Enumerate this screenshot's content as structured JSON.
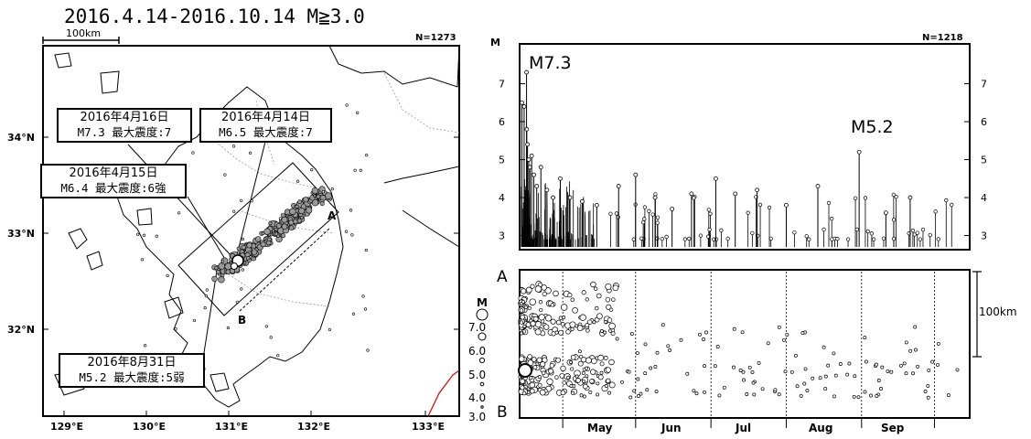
{
  "map": {
    "title": "2016.4.14-2016.10.14 M≧3.0",
    "count": "N=1273",
    "scalebar": "100km",
    "lat_labels": [
      "34°N",
      "33°N",
      "32°N"
    ],
    "lon_labels": [
      "129°E",
      "130°E",
      "131°E",
      "132°E",
      "133°E"
    ],
    "section_end_a": "A",
    "section_end_b": "B",
    "callouts": [
      {
        "date": "2016年4月16日",
        "detail": "M7.3 最大震度:7"
      },
      {
        "date": "2016年4月14日",
        "detail": "M6.5 最大震度:7"
      },
      {
        "date": "2016年4月15日",
        "detail": "M6.4 最大震度:6強"
      },
      {
        "date": "2016年8月31日",
        "detail": "M5.2 最大震度:5弱"
      }
    ],
    "magnitude_legend": {
      "title": "M",
      "values": [
        "7.0",
        "6.0",
        "5.0",
        "4.0",
        "3.0"
      ]
    },
    "colors": {
      "coast": "#000000",
      "prefecture": "#999999",
      "trench": "#e00000",
      "quake_fill": "#9a9a9a"
    }
  },
  "mt_chart": {
    "count": "N=1218",
    "y_axis_title": "M",
    "y_ticks": [
      "3",
      "4",
      "5",
      "6",
      "7"
    ],
    "annotations": [
      "M7.3",
      "M5.2"
    ]
  },
  "space_time": {
    "end_top": "A",
    "end_bottom": "B",
    "distance_scale": "100km",
    "months": [
      "May",
      "Jun",
      "Jul",
      "Aug",
      "Sep"
    ]
  },
  "chart_data": [
    {
      "type": "scatter",
      "title": "",
      "xlabel": "",
      "ylabel": "M",
      "ylim": [
        2.7,
        8.0
      ],
      "x_unit": "days since 2016-04-14",
      "xlim": [
        0,
        183
      ],
      "points": [
        {
          "x": 0.2,
          "y": 6.5
        },
        {
          "x": 1.1,
          "y": 6.4
        },
        {
          "x": 2.1,
          "y": 7.3
        },
        {
          "x": 2.2,
          "y": 5.8
        },
        {
          "x": 2.5,
          "y": 5.4
        },
        {
          "x": 3.0,
          "y": 5.0
        },
        {
          "x": 3.5,
          "y": 4.8
        },
        {
          "x": 4.2,
          "y": 5.1
        },
        {
          "x": 5.1,
          "y": 4.6
        },
        {
          "x": 6.3,
          "y": 4.3
        },
        {
          "x": 8.0,
          "y": 4.8
        },
        {
          "x": 10.5,
          "y": 4.2
        },
        {
          "x": 13.0,
          "y": 4.0
        },
        {
          "x": 16.0,
          "y": 4.5
        },
        {
          "x": 20.0,
          "y": 4.0
        },
        {
          "x": 25.0,
          "y": 3.9
        },
        {
          "x": 31.0,
          "y": 3.8
        },
        {
          "x": 40.0,
          "y": 4.3
        },
        {
          "x": 47.0,
          "y": 4.6
        },
        {
          "x": 55.0,
          "y": 4.0
        },
        {
          "x": 62.0,
          "y": 3.7
        },
        {
          "x": 70.0,
          "y": 4.1
        },
        {
          "x": 80.0,
          "y": 4.5
        },
        {
          "x": 88.0,
          "y": 4.1
        },
        {
          "x": 97.0,
          "y": 4.2
        },
        {
          "x": 109.0,
          "y": 3.8
        },
        {
          "x": 122.0,
          "y": 4.3
        },
        {
          "x": 139.0,
          "y": 5.2
        },
        {
          "x": 150.0,
          "y": 3.6
        },
        {
          "x": 160.0,
          "y": 4.0
        }
      ]
    }
  ]
}
